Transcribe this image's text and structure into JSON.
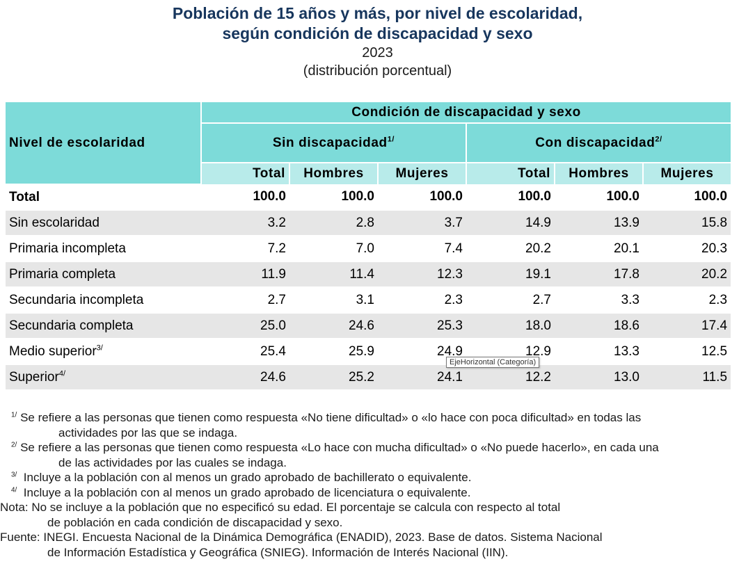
{
  "header": {
    "title_line1": "Población de 15 años y más, por nivel de escolaridad,",
    "title_line2": "según condición de discapacidad y sexo",
    "year": "2023",
    "subtitle": "(distribución porcentual)"
  },
  "table": {
    "row_header_label": "Nivel de escolaridad",
    "group_header": "Condición de discapacidad y sexo",
    "col_groups": [
      {
        "label": "Sin discapacidad",
        "sup": "1/"
      },
      {
        "label": "Con discapacidad",
        "sup": "2/"
      }
    ],
    "col_labels": [
      "Total",
      "Hombres",
      "Mujeres",
      "Total",
      "Hombres",
      "Mujeres"
    ],
    "total_row": {
      "label": "Total",
      "values": [
        "100.0",
        "100.0",
        "100.0",
        "100.0",
        "100.0",
        "100.0"
      ]
    },
    "rows": [
      {
        "label": "Sin escolaridad",
        "sup": "",
        "values": [
          "3.2",
          "2.8",
          "3.7",
          "14.9",
          "13.9",
          "15.8"
        ]
      },
      {
        "label": "Primaria incompleta",
        "sup": "",
        "values": [
          "7.2",
          "7.0",
          "7.4",
          "20.2",
          "20.1",
          "20.3"
        ]
      },
      {
        "label": "Primaria completa",
        "sup": "",
        "values": [
          "11.9",
          "11.4",
          "12.3",
          "19.1",
          "17.8",
          "20.2"
        ]
      },
      {
        "label": "Secundaria incompleta",
        "sup": "",
        "values": [
          "2.7",
          "3.1",
          "2.3",
          "2.7",
          "3.3",
          "2.3"
        ]
      },
      {
        "label": "Secundaria completa",
        "sup": "",
        "values": [
          "25.0",
          "24.6",
          "25.3",
          "18.0",
          "18.6",
          "17.4"
        ]
      },
      {
        "label": "Medio superior",
        "sup": "3/",
        "values": [
          "25.4",
          "25.9",
          "24.9",
          "12.9",
          "13.3",
          "12.5"
        ]
      },
      {
        "label": "Superior",
        "sup": "4/",
        "values": [
          "24.6",
          "25.2",
          "24.1",
          "12.2",
          "13.0",
          "11.5"
        ]
      }
    ]
  },
  "tooltip": "EjeHorizontal (Categoría)",
  "notes": {
    "n1_sup": "1/",
    "n1_line1": "Se refiere a las personas que tienen como respuesta «No tiene dificultad» o «lo hace con poca dificultad» en todas las",
    "n1_line2": "actividades por las que se indaga.",
    "n2_sup": "2/",
    "n2_line1": "Se refiere a las personas que tienen como respuesta «Lo hace con mucha dificultad» o «No puede hacerlo», en cada una",
    "n2_line2": "de las actividades por las cuales se indaga.",
    "n3_sup": "3/",
    "n3_text": "Incluye a la población con al menos un grado aprobado de bachillerato o equivalente.",
    "n4_sup": "4/",
    "n4_text": "Incluye a la población con al menos un grado aprobado de licenciatura o equivalente.",
    "nota_line1": "Nota: No se incluye a la población que no especificó su edad. El porcentaje se calcula con respecto al total",
    "nota_line2": "de población en cada condición de discapacidad y sexo.",
    "fuente_line1": "Fuente: INEGI. Encuesta Nacional de la Dinámica Demográfica (ENADID), 2023. Base de datos. Sistema Nacional",
    "fuente_line2": "de Información Estadística y Geográfica (SNIEG). Información de Interés Nacional (IIN)."
  },
  "chart_data": {
    "type": "table",
    "title": "Población de 15 años y más, por nivel de escolaridad, según condición de discapacidad y sexo",
    "columns": [
      "Sin discapacidad Total",
      "Sin discapacidad Hombres",
      "Sin discapacidad Mujeres",
      "Con discapacidad Total",
      "Con discapacidad Hombres",
      "Con discapacidad Mujeres"
    ],
    "categories": [
      "Total",
      "Sin escolaridad",
      "Primaria incompleta",
      "Primaria completa",
      "Secundaria incompleta",
      "Secundaria completa",
      "Medio superior",
      "Superior"
    ],
    "values": [
      [
        100.0,
        100.0,
        100.0,
        100.0,
        100.0,
        100.0
      ],
      [
        3.2,
        2.8,
        3.7,
        14.9,
        13.9,
        15.8
      ],
      [
        7.2,
        7.0,
        7.4,
        20.2,
        20.1,
        20.3
      ],
      [
        11.9,
        11.4,
        12.3,
        19.1,
        17.8,
        20.2
      ],
      [
        2.7,
        3.1,
        2.3,
        2.7,
        3.3,
        2.3
      ],
      [
        25.0,
        24.6,
        25.3,
        18.0,
        18.6,
        17.4
      ],
      [
        25.4,
        25.9,
        24.9,
        12.9,
        13.3,
        12.5
      ],
      [
        24.6,
        25.2,
        24.1,
        12.2,
        13.0,
        11.5
      ]
    ]
  }
}
